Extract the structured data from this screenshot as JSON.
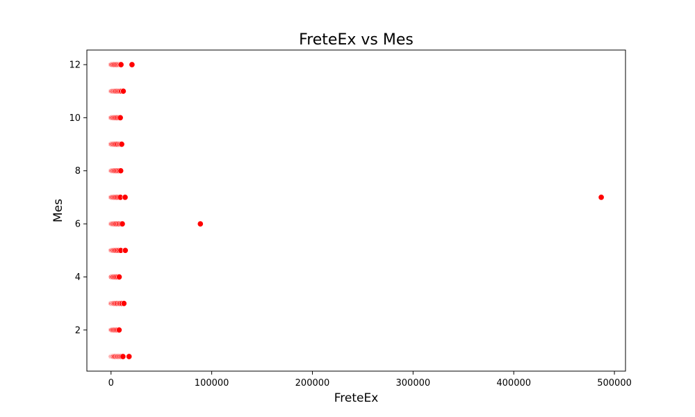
{
  "chart_data": {
    "type": "scatter",
    "title": "FreteEx vs Mes",
    "xlabel": "FreteEx",
    "ylabel": "Mes",
    "xlim": [
      -24000,
      511000
    ],
    "ylim": [
      0.45,
      12.55
    ],
    "xticks": [
      0,
      100000,
      200000,
      300000,
      400000,
      500000
    ],
    "yticks": [
      2,
      4,
      6,
      8,
      10,
      12
    ],
    "grid": false,
    "legend": "none",
    "color": "#ff0000",
    "x": [
      100,
      600,
      1200,
      1800,
      2500,
      3400,
      4500,
      5800,
      7000,
      8200,
      9400,
      10500,
      11800,
      17900,
      100,
      700,
      1500,
      2600,
      3800,
      5200,
      6600,
      8000,
      100,
      800,
      1600,
      2500,
      3500,
      4800,
      6200,
      7800,
      9200,
      10800,
      12800,
      100,
      600,
      1400,
      2400,
      3600,
      5000,
      6500,
      8100,
      100,
      700,
      1500,
      2400,
      3500,
      4800,
      6300,
      7900,
      9600,
      14200,
      100,
      700,
      1500,
      2500,
      3700,
      5000,
      6600,
      8200,
      9800,
      11200,
      88700,
      100,
      700,
      1500,
      2500,
      3600,
      4900,
      6300,
      7800,
      9300,
      14000,
      486900,
      100,
      700,
      1500,
      2500,
      3600,
      5000,
      6500,
      8000,
      9600,
      100,
      700,
      1500,
      2500,
      3600,
      4900,
      6400,
      8000,
      9400,
      10600,
      100,
      700,
      1500,
      2500,
      3600,
      4900,
      6300,
      7800,
      9200,
      100,
      700,
      1500,
      2500,
      3600,
      4800,
      6200,
      7600,
      9000,
      10400,
      12200,
      100,
      700,
      1500,
      2500,
      3600,
      5000,
      6300,
      7700,
      8900,
      9900,
      20800
    ],
    "y": [
      1,
      1,
      1,
      1,
      1,
      1,
      1,
      1,
      1,
      1,
      1,
      1,
      1,
      1,
      2,
      2,
      2,
      2,
      2,
      2,
      2,
      2,
      3,
      3,
      3,
      3,
      3,
      3,
      3,
      3,
      3,
      3,
      3,
      4,
      4,
      4,
      4,
      4,
      4,
      4,
      4,
      5,
      5,
      5,
      5,
      5,
      5,
      5,
      5,
      5,
      5,
      6,
      6,
      6,
      6,
      6,
      6,
      6,
      6,
      6,
      6,
      6,
      7,
      7,
      7,
      7,
      7,
      7,
      7,
      7,
      7,
      7,
      7,
      8,
      8,
      8,
      8,
      8,
      8,
      8,
      8,
      8,
      9,
      9,
      9,
      9,
      9,
      9,
      9,
      9,
      9,
      9,
      10,
      10,
      10,
      10,
      10,
      10,
      10,
      10,
      10,
      11,
      11,
      11,
      11,
      11,
      11,
      11,
      11,
      11,
      11,
      11,
      12,
      12,
      12,
      12,
      12,
      12,
      12,
      12,
      12,
      12,
      12
    ]
  }
}
